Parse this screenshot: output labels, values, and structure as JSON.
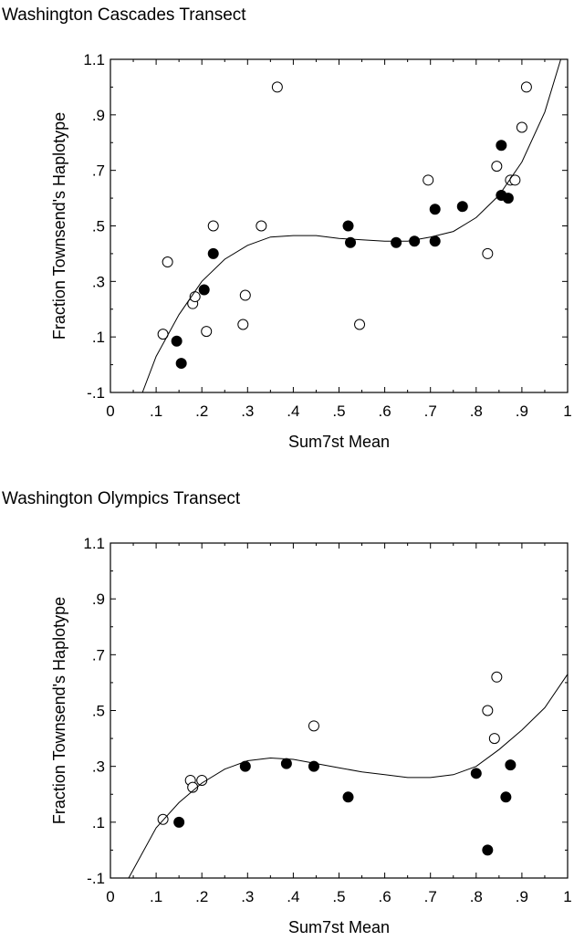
{
  "chart_data": [
    {
      "type": "scatter",
      "title": "Washington Cascades Transect",
      "xlabel": "Sum7st Mean",
      "ylabel": "Fraction Townsend's Haplotype",
      "xlim": [
        0,
        1
      ],
      "ylim": [
        -0.1,
        1.1
      ],
      "x_ticks": [
        0,
        0.1,
        0.2,
        0.3,
        0.4,
        0.5,
        0.6,
        0.7,
        0.8,
        0.9,
        1
      ],
      "x_tick_labels": [
        "0",
        ".1",
        ".2",
        ".3",
        ".4",
        ".5",
        ".6",
        ".7",
        ".8",
        ".9",
        "1"
      ],
      "y_ticks": [
        -0.1,
        0.1,
        0.3,
        0.5,
        0.7,
        0.9,
        1.1
      ],
      "y_tick_labels": [
        "-.1",
        ".1",
        ".3",
        ".5",
        ".7",
        ".9",
        "1.1"
      ],
      "grid": false,
      "legend": "none",
      "series": [
        {
          "marker": "open-circle",
          "points": [
            [
              0.115,
              0.11
            ],
            [
              0.125,
              0.37
            ],
            [
              0.18,
              0.22
            ],
            [
              0.185,
              0.245
            ],
            [
              0.21,
              0.12
            ],
            [
              0.225,
              0.5
            ],
            [
              0.29,
              0.145
            ],
            [
              0.295,
              0.25
            ],
            [
              0.33,
              0.5
            ],
            [
              0.365,
              1.0
            ],
            [
              0.545,
              0.145
            ],
            [
              0.695,
              0.665
            ],
            [
              0.825,
              0.4
            ],
            [
              0.845,
              0.715
            ],
            [
              0.875,
              0.665
            ],
            [
              0.885,
              0.665
            ],
            [
              0.9,
              0.855
            ],
            [
              0.91,
              1.0
            ]
          ]
        },
        {
          "marker": "filled-circle",
          "points": [
            [
              0.145,
              0.085
            ],
            [
              0.155,
              0.005
            ],
            [
              0.205,
              0.27
            ],
            [
              0.225,
              0.4
            ],
            [
              0.52,
              0.5
            ],
            [
              0.525,
              0.44
            ],
            [
              0.625,
              0.44
            ],
            [
              0.665,
              0.445
            ],
            [
              0.71,
              0.445
            ],
            [
              0.71,
              0.56
            ],
            [
              0.77,
              0.57
            ],
            [
              0.855,
              0.61
            ],
            [
              0.855,
              0.79
            ],
            [
              0.87,
              0.6
            ]
          ]
        },
        {
          "marker": "line",
          "curve": [
            [
              0.07,
              -0.1
            ],
            [
              0.1,
              0.03
            ],
            [
              0.15,
              0.18
            ],
            [
              0.2,
              0.3
            ],
            [
              0.25,
              0.38
            ],
            [
              0.3,
              0.43
            ],
            [
              0.35,
              0.46
            ],
            [
              0.4,
              0.465
            ],
            [
              0.45,
              0.465
            ],
            [
              0.5,
              0.455
            ],
            [
              0.55,
              0.45
            ],
            [
              0.6,
              0.445
            ],
            [
              0.65,
              0.445
            ],
            [
              0.7,
              0.46
            ],
            [
              0.75,
              0.48
            ],
            [
              0.8,
              0.53
            ],
            [
              0.85,
              0.61
            ],
            [
              0.9,
              0.73
            ],
            [
              0.95,
              0.91
            ],
            [
              0.985,
              1.1
            ]
          ]
        }
      ]
    },
    {
      "type": "scatter",
      "title": "Washington Olympics Transect",
      "xlabel": "Sum7st Mean",
      "ylabel": "Fraction Townsend's Haplotype",
      "xlim": [
        0,
        1
      ],
      "ylim": [
        -0.1,
        1.1
      ],
      "x_ticks": [
        0,
        0.1,
        0.2,
        0.3,
        0.4,
        0.5,
        0.6,
        0.7,
        0.8,
        0.9,
        1
      ],
      "x_tick_labels": [
        "0",
        ".1",
        ".2",
        ".3",
        ".4",
        ".5",
        ".6",
        ".7",
        ".8",
        ".9",
        "1"
      ],
      "y_ticks": [
        -0.1,
        0.1,
        0.3,
        0.5,
        0.7,
        0.9,
        1.1
      ],
      "y_tick_labels": [
        "-.1",
        ".1",
        ".3",
        ".5",
        ".7",
        ".9",
        "1.1"
      ],
      "grid": false,
      "legend": "none",
      "series": [
        {
          "marker": "open-circle",
          "points": [
            [
              0.115,
              0.11
            ],
            [
              0.175,
              0.25
            ],
            [
              0.18,
              0.225
            ],
            [
              0.2,
              0.25
            ],
            [
              0.445,
              0.445
            ],
            [
              0.825,
              0.5
            ],
            [
              0.84,
              0.4
            ],
            [
              0.845,
              0.62
            ]
          ]
        },
        {
          "marker": "filled-circle",
          "points": [
            [
              0.15,
              0.1
            ],
            [
              0.295,
              0.3
            ],
            [
              0.385,
              0.31
            ],
            [
              0.445,
              0.3
            ],
            [
              0.52,
              0.19
            ],
            [
              0.8,
              0.275
            ],
            [
              0.825,
              0.0
            ],
            [
              0.865,
              0.19
            ],
            [
              0.875,
              0.305
            ]
          ]
        },
        {
          "marker": "line",
          "curve": [
            [
              0.04,
              -0.1
            ],
            [
              0.1,
              0.08
            ],
            [
              0.15,
              0.17
            ],
            [
              0.2,
              0.24
            ],
            [
              0.25,
              0.29
            ],
            [
              0.3,
              0.32
            ],
            [
              0.35,
              0.33
            ],
            [
              0.4,
              0.325
            ],
            [
              0.45,
              0.31
            ],
            [
              0.5,
              0.295
            ],
            [
              0.55,
              0.28
            ],
            [
              0.6,
              0.27
            ],
            [
              0.65,
              0.26
            ],
            [
              0.7,
              0.26
            ],
            [
              0.75,
              0.27
            ],
            [
              0.8,
              0.3
            ],
            [
              0.85,
              0.36
            ],
            [
              0.9,
              0.43
            ],
            [
              0.95,
              0.51
            ],
            [
              1.0,
              0.63
            ]
          ]
        }
      ]
    }
  ]
}
